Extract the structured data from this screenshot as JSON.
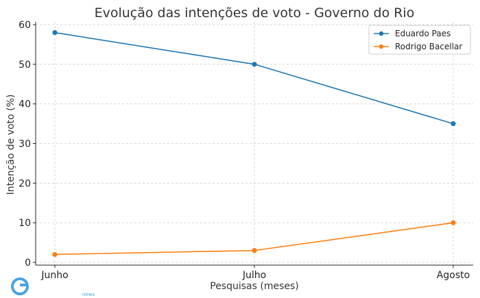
{
  "chart_data": {
    "type": "line",
    "title": "Evolução das intenções de voto - Governo do Rio",
    "xlabel": "Pesquisas (meses)",
    "ylabel": "Intenção de voto (%)",
    "categories": [
      "Junho",
      "Julho",
      "Agosto"
    ],
    "ylim": [
      0,
      60
    ],
    "yticks": [
      0,
      10,
      20,
      30,
      40,
      50,
      60
    ],
    "grid": true,
    "legend_position": "top-right",
    "series": [
      {
        "name": "Eduardo Paes",
        "color": "#1f77b4",
        "values": [
          58,
          50,
          35
        ]
      },
      {
        "name": "Rodrigo Bacellar",
        "color": "#ff7f0e",
        "values": [
          2,
          3,
          10
        ]
      }
    ]
  },
  "watermark": {
    "text": "news",
    "logo_color": "#4aa3df"
  }
}
